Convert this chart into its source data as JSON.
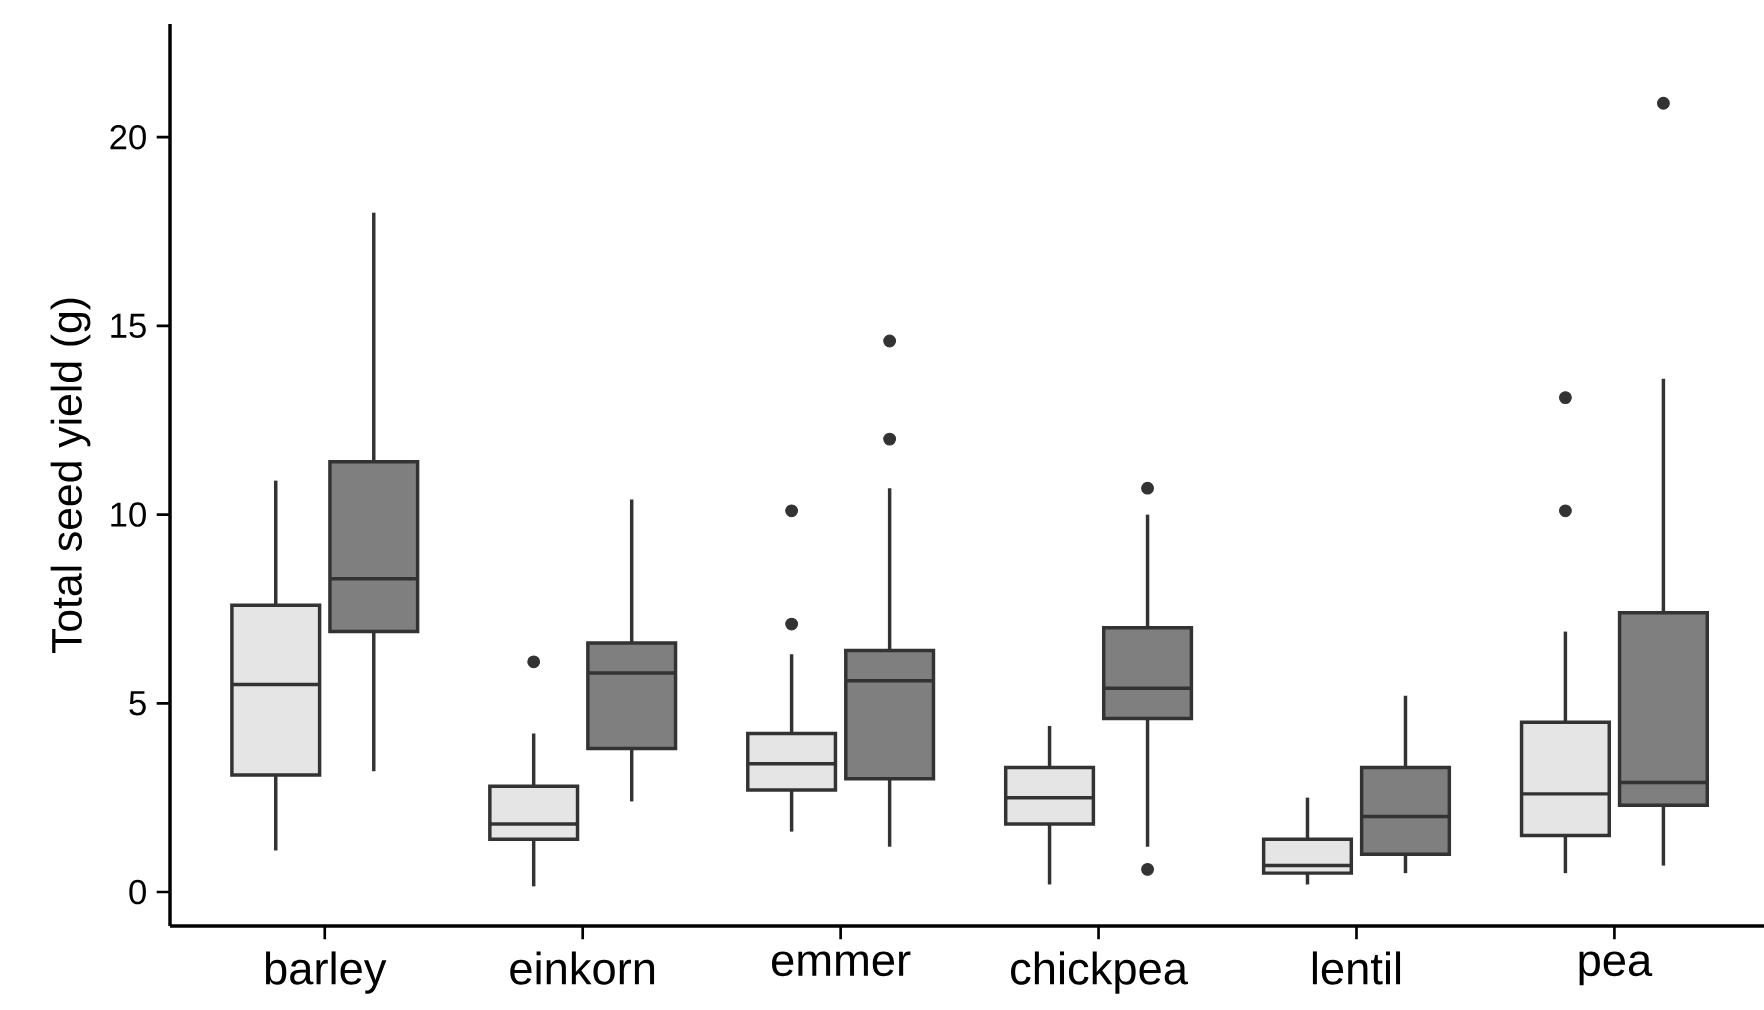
{
  "chart_data": {
    "type": "box",
    "ylabel": "Total seed yield (g)",
    "categories": [
      "barley",
      "einkorn",
      "emmer",
      "chickpea",
      "lentil",
      "pea"
    ],
    "ylim": [
      -0.9,
      23
    ],
    "yticks": [
      0,
      5,
      10,
      15,
      20
    ],
    "grid": false,
    "series": [
      {
        "color": "#e5e5e5",
        "boxes": [
          {
            "low": 1.1,
            "q1": 3.1,
            "median": 5.5,
            "q3": 7.6,
            "high": 10.9
          },
          {
            "low": 0.15,
            "q1": 1.4,
            "median": 1.8,
            "q3": 2.8,
            "high": 4.2,
            "outliers": [
              6.1
            ]
          },
          {
            "low": 1.6,
            "q1": 2.7,
            "median": 3.4,
            "q3": 4.2,
            "high": 6.3,
            "outliers": [
              7.1,
              10.1
            ]
          },
          {
            "low": 0.2,
            "q1": 1.8,
            "median": 2.5,
            "q3": 3.3,
            "high": 4.4
          },
          {
            "low": 0.2,
            "q1": 0.5,
            "median": 0.7,
            "q3": 1.4,
            "high": 2.5
          },
          {
            "low": 0.5,
            "q1": 1.5,
            "median": 2.6,
            "q3": 4.5,
            "high": 6.9,
            "outliers": [
              10.1,
              13.1
            ]
          }
        ]
      },
      {
        "color": "#7f7f7f",
        "boxes": [
          {
            "low": 3.2,
            "q1": 6.9,
            "median": 8.3,
            "q3": 11.4,
            "high": 18.0
          },
          {
            "low": 2.4,
            "q1": 3.8,
            "median": 5.8,
            "q3": 6.6,
            "high": 10.4
          },
          {
            "low": 1.2,
            "q1": 3.0,
            "median": 5.6,
            "q3": 6.4,
            "high": 10.7,
            "outliers": [
              12.0,
              14.6
            ]
          },
          {
            "low": 1.2,
            "q1": 4.6,
            "median": 5.4,
            "q3": 7.0,
            "high": 10.0,
            "outliers": [
              0.6,
              10.7
            ]
          },
          {
            "low": 0.5,
            "q1": 1.0,
            "median": 2.0,
            "q3": 3.3,
            "high": 5.2
          },
          {
            "low": 0.7,
            "q1": 2.3,
            "median": 2.9,
            "q3": 7.4,
            "high": 13.6,
            "outliers": [
              20.9
            ]
          }
        ]
      }
    ]
  }
}
